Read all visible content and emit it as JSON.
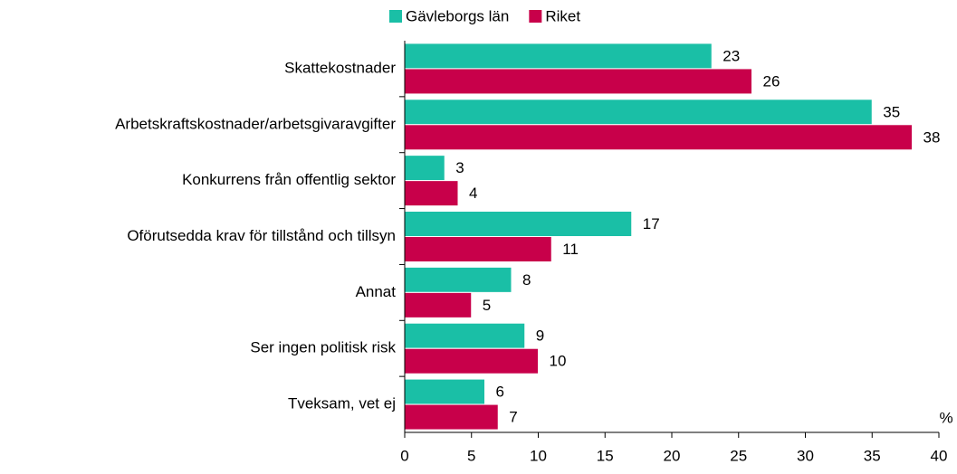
{
  "chart_data": {
    "type": "barh",
    "categories": [
      "Skattekostnader",
      "Arbetskraftskostnader/arbetsgivaravgifter",
      "Konkurrens från offentlig sektor",
      "Oförutsedda krav för tillstånd och tillsyn",
      "Annat",
      "Ser ingen politisk risk",
      "Tveksam, vet ej"
    ],
    "series": [
      {
        "name": "Gävleborgs län",
        "color": "#1abfa6",
        "values": [
          23,
          35,
          3,
          17,
          8,
          9,
          6
        ]
      },
      {
        "name": "Riket",
        "color": "#c8004a",
        "values": [
          26,
          38,
          4,
          11,
          5,
          10,
          7
        ]
      }
    ],
    "x_label": "%",
    "xlim": [
      0,
      40
    ],
    "xticks": [
      0,
      5,
      10,
      15,
      20,
      25,
      30,
      35,
      40
    ],
    "legend": "top"
  }
}
